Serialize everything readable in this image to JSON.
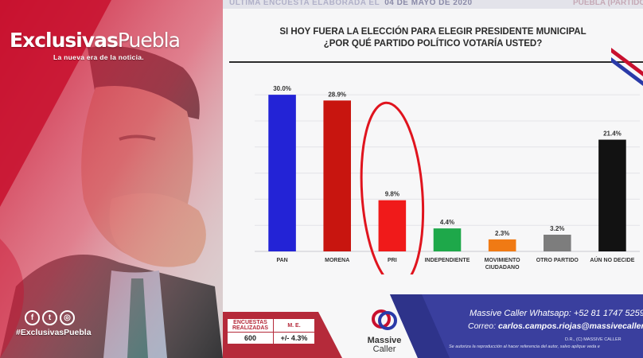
{
  "brand": {
    "name_bold": "Exclusivas",
    "name_thin": "Puebla",
    "tagline": "La nueva era de la noticia.",
    "hashtag": "#ExclusivasPuebla",
    "social_icons": [
      {
        "name": "facebook-icon",
        "glyph": "f"
      },
      {
        "name": "twitter-icon",
        "glyph": "t"
      },
      {
        "name": "instagram-icon",
        "glyph": "◎"
      }
    ]
  },
  "header": {
    "strip_label": "ÚLTIMA ENCUESTA ELABORADA EL",
    "strip_date": "04 DE MAYO DE 2020",
    "strip_right": "PUEBLA (PARTIDOS"
  },
  "question": {
    "line1": "SI HOY FUERA LA ELECCIÓN PARA ELEGIR PRESIDENTE MUNICIPAL",
    "line2": "¿POR QUÉ PARTIDO POLÍTICO VOTARÍA USTED?"
  },
  "chart_data": {
    "type": "bar",
    "title": "SI HOY FUERA LA ELECCIÓN PARA ELEGIR PRESIDENTE MUNICIPAL ¿POR QUÉ PARTIDO POLÍTICO VOTARÍA USTED?",
    "xlabel": "",
    "ylabel": "",
    "ylim": [
      0,
      32
    ],
    "grid": true,
    "categories": [
      "PAN",
      "MORENA",
      "PRI",
      "INDEPENDIENTE",
      "MOVIMIENTO CIUDADANO",
      "OTRO PARTIDO",
      "AÚN NO DECIDE"
    ],
    "category_lines": [
      [
        "PAN"
      ],
      [
        "MORENA"
      ],
      [
        "PRI"
      ],
      [
        "INDEPENDIENTE"
      ],
      [
        "MOVIMIENTO",
        "CIUDADANO"
      ],
      [
        "OTRO PARTIDO"
      ],
      [
        "AÚN NO DECIDE"
      ]
    ],
    "values": [
      30.0,
      28.9,
      9.8,
      4.4,
      2.3,
      3.2,
      21.4
    ],
    "value_labels": [
      "30.0%",
      "28.9%",
      "9.8%",
      "4.4%",
      "2.3%",
      "3.2%",
      "21.4%"
    ],
    "colors": [
      "#2323d6",
      "#c8150f",
      "#f01a1a",
      "#1ea84a",
      "#f07a14",
      "#7d7d7d",
      "#121212"
    ],
    "highlight_index": 2,
    "highlight_color": "#e0141e"
  },
  "footer": {
    "table_header_1": "ENCUESTAS REALIZADAS",
    "table_header_2": "M. E.",
    "surveys_value": "600",
    "margin_error": "+/- 4.3%",
    "logo_line1": "Massive",
    "logo_line2": "Caller",
    "whatsapp_label": "Massive Caller Whatsapp:",
    "whatsapp_number": "+52 81 1747 5259",
    "email_label": "Correo:",
    "email_value": "carlos.campos.riojas@massivecaller.com",
    "rights": "D.R., (C) MASSIVE CALLER",
    "disclaimer": "Se autoriza la reproducción al hacer referencia del autor, salvo aplique veda e"
  }
}
